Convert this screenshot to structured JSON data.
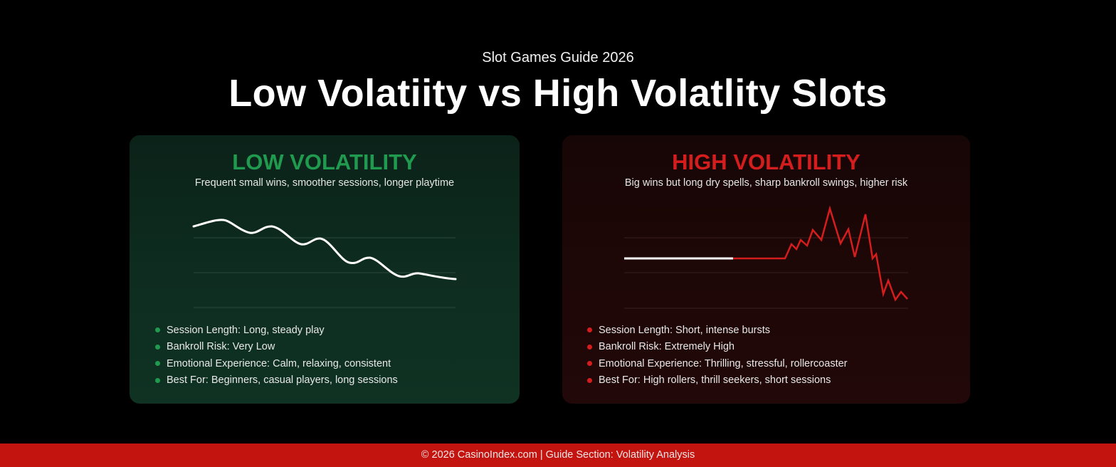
{
  "header": {
    "kicker": "Slot Games Guide 2026",
    "title": "Low Volatiity vs High Volatlity Slots"
  },
  "colors": {
    "low_accent": "#1f9a4e",
    "high_accent": "#d61d1d",
    "footer_bg": "#c3140f"
  },
  "low_card": {
    "heading": "LOW VOLATILITY",
    "subtitle": "Frequent small wins, smoother sessions, longer playtime",
    "bullets": [
      "Session Length: Long, steady play",
      "Bankroll Risk: Very Low",
      "Emotional Experience: Calm, relaxing, consistent",
      "Best For: Beginners, casual players, long sessions"
    ]
  },
  "high_card": {
    "heading": "HIGH VOLATILITY",
    "subtitle": "Big wins but long dry spells, sharp bankroll swings, higher risk",
    "bullets": [
      "Session Length: Short, intense bursts",
      "Bankroll Risk: Extremely High",
      "Emotional Experience: Thrilling, stressful, rollercoaster",
      "Best For: High rollers, thrill seekers, short sessions"
    ]
  },
  "footer": {
    "text": "© 2026 CasinoIndex.com | Guide Section: Volatility Analysis"
  }
}
